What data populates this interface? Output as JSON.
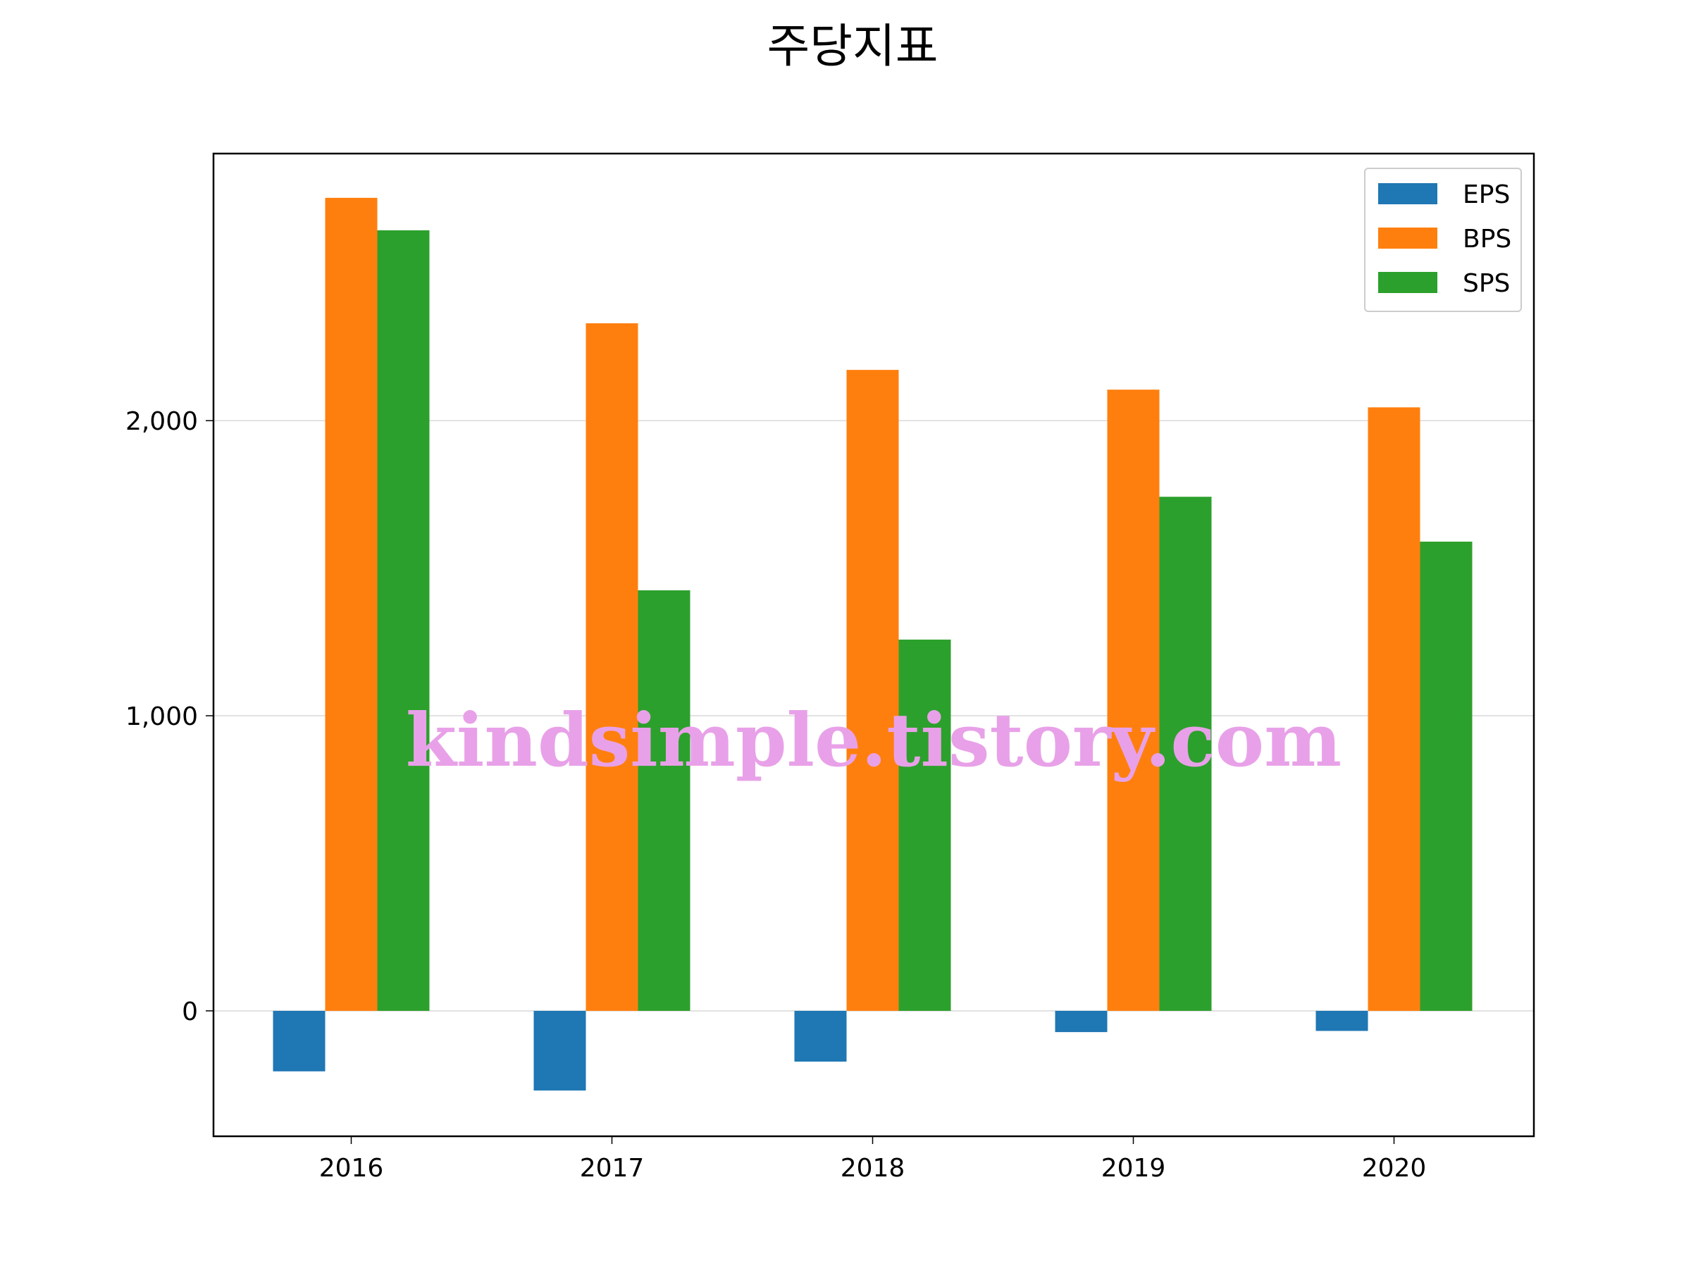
{
  "chart_data": {
    "type": "bar",
    "title": "주당지표",
    "xlabel": "",
    "ylabel": "",
    "categories": [
      "2016",
      "2017",
      "2018",
      "2019",
      "2020"
    ],
    "series": [
      {
        "name": "EPS",
        "color": "#1f77b4",
        "values": [
          -205,
          -270,
          -172,
          -72,
          -68
        ]
      },
      {
        "name": "BPS",
        "color": "#ff7f0e",
        "values": [
          2755,
          2330,
          2172,
          2105,
          2045
        ]
      },
      {
        "name": "SPS",
        "color": "#2ca02c",
        "values": [
          2645,
          1425,
          1258,
          1742,
          1590
        ]
      }
    ],
    "yticks": [
      0,
      1000,
      2000
    ],
    "ytick_labels": [
      "0",
      "1,000",
      "2,000"
    ],
    "ylim": [
      -425,
      2905
    ],
    "grid": "y",
    "legend_position": "top-right",
    "watermark": "kindsimple.tistory.com"
  }
}
